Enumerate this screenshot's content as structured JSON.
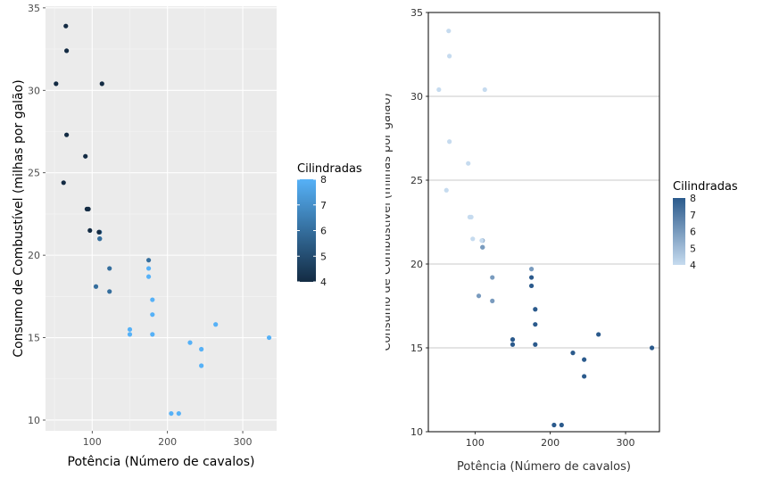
{
  "chart_data": [
    {
      "type": "scatter",
      "xlabel": "Potência (Número de cavalos)",
      "ylabel": "Consumo de Combustível (milhas por galão)",
      "xlim": [
        38,
        345
      ],
      "ylim": [
        9.35,
        35.1
      ],
      "x_ticks": [
        "100",
        "200",
        "300"
      ],
      "y_ticks": [
        "10",
        "15",
        "20",
        "25",
        "30",
        "35"
      ],
      "grid": true,
      "legend": {
        "title": "Cilindradas",
        "position": "right",
        "ticks": [
          "4",
          "5",
          "6",
          "7",
          "8"
        ]
      },
      "color_scale": {
        "low": "#132b43",
        "high": "#56b1f7",
        "min": 4,
        "max": 8
      },
      "background": "#ebebeb",
      "points": [
        {
          "x": 110,
          "y": 21.0,
          "cyl": 6
        },
        {
          "x": 110,
          "y": 21.0,
          "cyl": 6
        },
        {
          "x": 93,
          "y": 22.8,
          "cyl": 4
        },
        {
          "x": 110,
          "y": 21.4,
          "cyl": 6
        },
        {
          "x": 175,
          "y": 18.7,
          "cyl": 8
        },
        {
          "x": 105,
          "y": 18.1,
          "cyl": 6
        },
        {
          "x": 245,
          "y": 14.3,
          "cyl": 8
        },
        {
          "x": 62,
          "y": 24.4,
          "cyl": 4
        },
        {
          "x": 95,
          "y": 22.8,
          "cyl": 4
        },
        {
          "x": 123,
          "y": 19.2,
          "cyl": 6
        },
        {
          "x": 123,
          "y": 17.8,
          "cyl": 6
        },
        {
          "x": 180,
          "y": 16.4,
          "cyl": 8
        },
        {
          "x": 180,
          "y": 17.3,
          "cyl": 8
        },
        {
          "x": 180,
          "y": 15.2,
          "cyl": 8
        },
        {
          "x": 205,
          "y": 10.4,
          "cyl": 8
        },
        {
          "x": 215,
          "y": 10.4,
          "cyl": 8
        },
        {
          "x": 230,
          "y": 14.7,
          "cyl": 8
        },
        {
          "x": 66,
          "y": 32.4,
          "cyl": 4
        },
        {
          "x": 52,
          "y": 30.4,
          "cyl": 4
        },
        {
          "x": 65,
          "y": 33.9,
          "cyl": 4
        },
        {
          "x": 97,
          "y": 21.5,
          "cyl": 4
        },
        {
          "x": 150,
          "y": 15.5,
          "cyl": 8
        },
        {
          "x": 150,
          "y": 15.2,
          "cyl": 8
        },
        {
          "x": 245,
          "y": 13.3,
          "cyl": 8
        },
        {
          "x": 175,
          "y": 19.2,
          "cyl": 8
        },
        {
          "x": 66,
          "y": 27.3,
          "cyl": 4
        },
        {
          "x": 91,
          "y": 26.0,
          "cyl": 4
        },
        {
          "x": 113,
          "y": 30.4,
          "cyl": 4
        },
        {
          "x": 264,
          "y": 15.8,
          "cyl": 8
        },
        {
          "x": 175,
          "y": 19.7,
          "cyl": 6
        },
        {
          "x": 335,
          "y": 15.0,
          "cyl": 8
        },
        {
          "x": 109,
          "y": 21.4,
          "cyl": 4
        }
      ]
    },
    {
      "type": "scatter",
      "xlabel": "Potência (Número de cavalos)",
      "ylabel": "Consumo de Combustível (milhas por galão)",
      "xlim": [
        38,
        345
      ],
      "ylim": [
        10,
        35
      ],
      "x_ticks": [
        "100",
        "200",
        "300"
      ],
      "y_ticks": [
        "10",
        "15",
        "20",
        "25",
        "30",
        "35"
      ],
      "grid": "horizontal-major",
      "legend": {
        "title": "Cilindradas",
        "position": "right",
        "ticks": [
          "8",
          "7",
          "6",
          "5",
          "4"
        ]
      },
      "color_scale": {
        "low": "#c6dbef",
        "high": "#2b5a8c",
        "min": 4,
        "max": 8
      },
      "background": "#ffffff",
      "points": [
        {
          "x": 110,
          "y": 21.0,
          "cyl": 6
        },
        {
          "x": 110,
          "y": 21.0,
          "cyl": 6
        },
        {
          "x": 93,
          "y": 22.8,
          "cyl": 4
        },
        {
          "x": 110,
          "y": 21.4,
          "cyl": 6
        },
        {
          "x": 175,
          "y": 18.7,
          "cyl": 8
        },
        {
          "x": 105,
          "y": 18.1,
          "cyl": 6
        },
        {
          "x": 245,
          "y": 14.3,
          "cyl": 8
        },
        {
          "x": 62,
          "y": 24.4,
          "cyl": 4
        },
        {
          "x": 95,
          "y": 22.8,
          "cyl": 4
        },
        {
          "x": 123,
          "y": 19.2,
          "cyl": 6
        },
        {
          "x": 123,
          "y": 17.8,
          "cyl": 6
        },
        {
          "x": 180,
          "y": 16.4,
          "cyl": 8
        },
        {
          "x": 180,
          "y": 17.3,
          "cyl": 8
        },
        {
          "x": 180,
          "y": 15.2,
          "cyl": 8
        },
        {
          "x": 205,
          "y": 10.4,
          "cyl": 8
        },
        {
          "x": 215,
          "y": 10.4,
          "cyl": 8
        },
        {
          "x": 230,
          "y": 14.7,
          "cyl": 8
        },
        {
          "x": 66,
          "y": 32.4,
          "cyl": 4
        },
        {
          "x": 52,
          "y": 30.4,
          "cyl": 4
        },
        {
          "x": 65,
          "y": 33.9,
          "cyl": 4
        },
        {
          "x": 97,
          "y": 21.5,
          "cyl": 4
        },
        {
          "x": 150,
          "y": 15.5,
          "cyl": 8
        },
        {
          "x": 150,
          "y": 15.2,
          "cyl": 8
        },
        {
          "x": 245,
          "y": 13.3,
          "cyl": 8
        },
        {
          "x": 175,
          "y": 19.2,
          "cyl": 8
        },
        {
          "x": 66,
          "y": 27.3,
          "cyl": 4
        },
        {
          "x": 91,
          "y": 26.0,
          "cyl": 4
        },
        {
          "x": 113,
          "y": 30.4,
          "cyl": 4
        },
        {
          "x": 264,
          "y": 15.8,
          "cyl": 8
        },
        {
          "x": 175,
          "y": 19.7,
          "cyl": 6
        },
        {
          "x": 335,
          "y": 15.0,
          "cyl": 8
        },
        {
          "x": 109,
          "y": 21.4,
          "cyl": 4
        }
      ]
    }
  ]
}
